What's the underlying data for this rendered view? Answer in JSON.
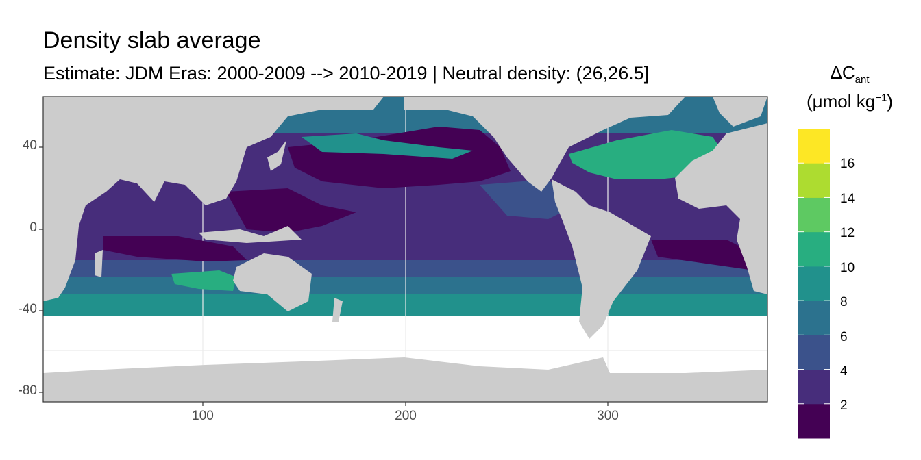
{
  "title": "Density slab average",
  "subtitle": "Estimate: JDM Eras: 2000-2009 --> 2010-2019 | Neutral density: (26,26.5]",
  "x_axis": {
    "ticks": [
      "100",
      "200",
      "300"
    ]
  },
  "y_axis": {
    "ticks": [
      "40",
      "0",
      "-40",
      "-80"
    ]
  },
  "legend": {
    "title_main": "ΔC",
    "title_sub": "ant",
    "unit_prefix": "(μmol kg",
    "unit_sup": "−1",
    "unit_suffix": ")",
    "labels": [
      "16",
      "14",
      "12",
      "10",
      "8",
      "6",
      "4",
      "2"
    ],
    "bins": [
      {
        "color": "#440154"
      },
      {
        "color": "#472d7b"
      },
      {
        "color": "#3b528b"
      },
      {
        "color": "#2c728e"
      },
      {
        "color": "#21918c"
      },
      {
        "color": "#28ae80"
      },
      {
        "color": "#5ec962"
      },
      {
        "color": "#addc30"
      },
      {
        "color": "#fde725"
      }
    ]
  },
  "colors": {
    "land": "#cccccc",
    "panel_bg": "#ffffff",
    "grid": "#ebebeb",
    "border": "#333333"
  }
}
